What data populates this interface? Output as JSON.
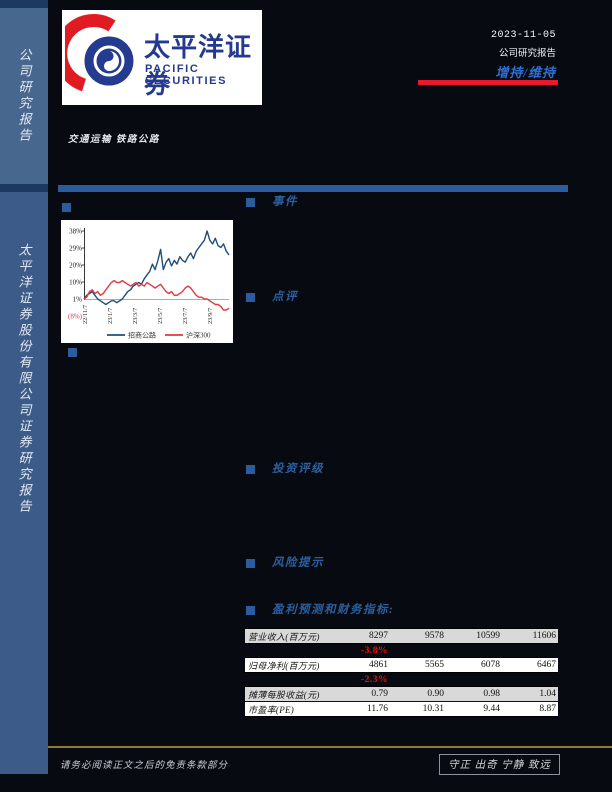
{
  "sidebar": {
    "top_label": "公司研究报告",
    "bottom_label": "太平洋证券股份有限公司证券研究报告"
  },
  "header": {
    "logo_cn": "太平洋证券",
    "logo_en": "PACIFIC SECURITIES",
    "date": "2023-11-05",
    "report_type": "公司研究报告",
    "rating": "增持/维持",
    "industry": "交通运输  铁路公路"
  },
  "sections": {
    "event": "事件",
    "comment": "点评",
    "invest_rating": "投资评级",
    "risk": "风险提示"
  },
  "chart_data": {
    "type": "line",
    "title": "",
    "xlabel": "",
    "ylabel": "",
    "ylim": [
      -8,
      38
    ],
    "grid": false,
    "legend_position": "bottom",
    "y_ticks": [
      "38%",
      "29%",
      "20%",
      "10%",
      "1%",
      "(8%)"
    ],
    "x_ticks": [
      "22/11/7",
      "23/1/7",
      "23/3/7",
      "23/5/7",
      "23/7/7",
      "23/9/7"
    ],
    "series": [
      {
        "name": "招商公路",
        "color": "#1f4e79",
        "values": [
          1,
          3,
          4,
          5,
          3,
          1,
          0,
          -1,
          -2,
          -1,
          0,
          0,
          -1,
          0,
          1,
          3,
          5,
          6,
          8,
          9,
          10,
          9,
          12,
          14,
          16,
          20,
          17,
          22,
          28,
          17,
          21,
          23,
          19,
          22,
          20,
          24,
          22,
          21,
          24,
          26,
          23,
          27,
          29,
          31,
          33,
          38,
          33,
          31,
          34,
          30,
          29,
          31,
          27,
          25
        ]
      },
      {
        "name": "沪深300",
        "color": "#e03a3e",
        "values": [
          1,
          2,
          5,
          6,
          4,
          5,
          3,
          4,
          6,
          8,
          10,
          11,
          10,
          10,
          11,
          10,
          9,
          8,
          9,
          10,
          8,
          9,
          8,
          10,
          9,
          8,
          7,
          8,
          9,
          7,
          5,
          4,
          5,
          3,
          3,
          4,
          5,
          7,
          8,
          7,
          5,
          3,
          2,
          2,
          1,
          1,
          0,
          -1,
          -2,
          -2,
          -3,
          -5,
          -5,
          -4
        ]
      }
    ]
  },
  "table": {
    "title": "盈利预测和财务指标:",
    "rows": [
      {
        "label": "营业收入(百万元)",
        "values": [
          "8297",
          "9578",
          "10599",
          "11606"
        ]
      },
      {
        "label": "归母净利(百万元)",
        "values": [
          "4861",
          "5565",
          "6078",
          "6467"
        ]
      },
      {
        "label": "摊薄每股收益(元)",
        "values": [
          "0.79",
          "0.90",
          "0.98",
          "1.04"
        ]
      },
      {
        "label": "市盈率(PE)",
        "values": [
          "11.76",
          "10.31",
          "9.44",
          "8.87"
        ]
      }
    ],
    "deltas": [
      "-3.8%",
      "-2.3%"
    ]
  },
  "footer": {
    "disclaimer": "请务必阅读正文之后的免责条款部分",
    "motto": "守正 出奇 宁静 致远"
  }
}
